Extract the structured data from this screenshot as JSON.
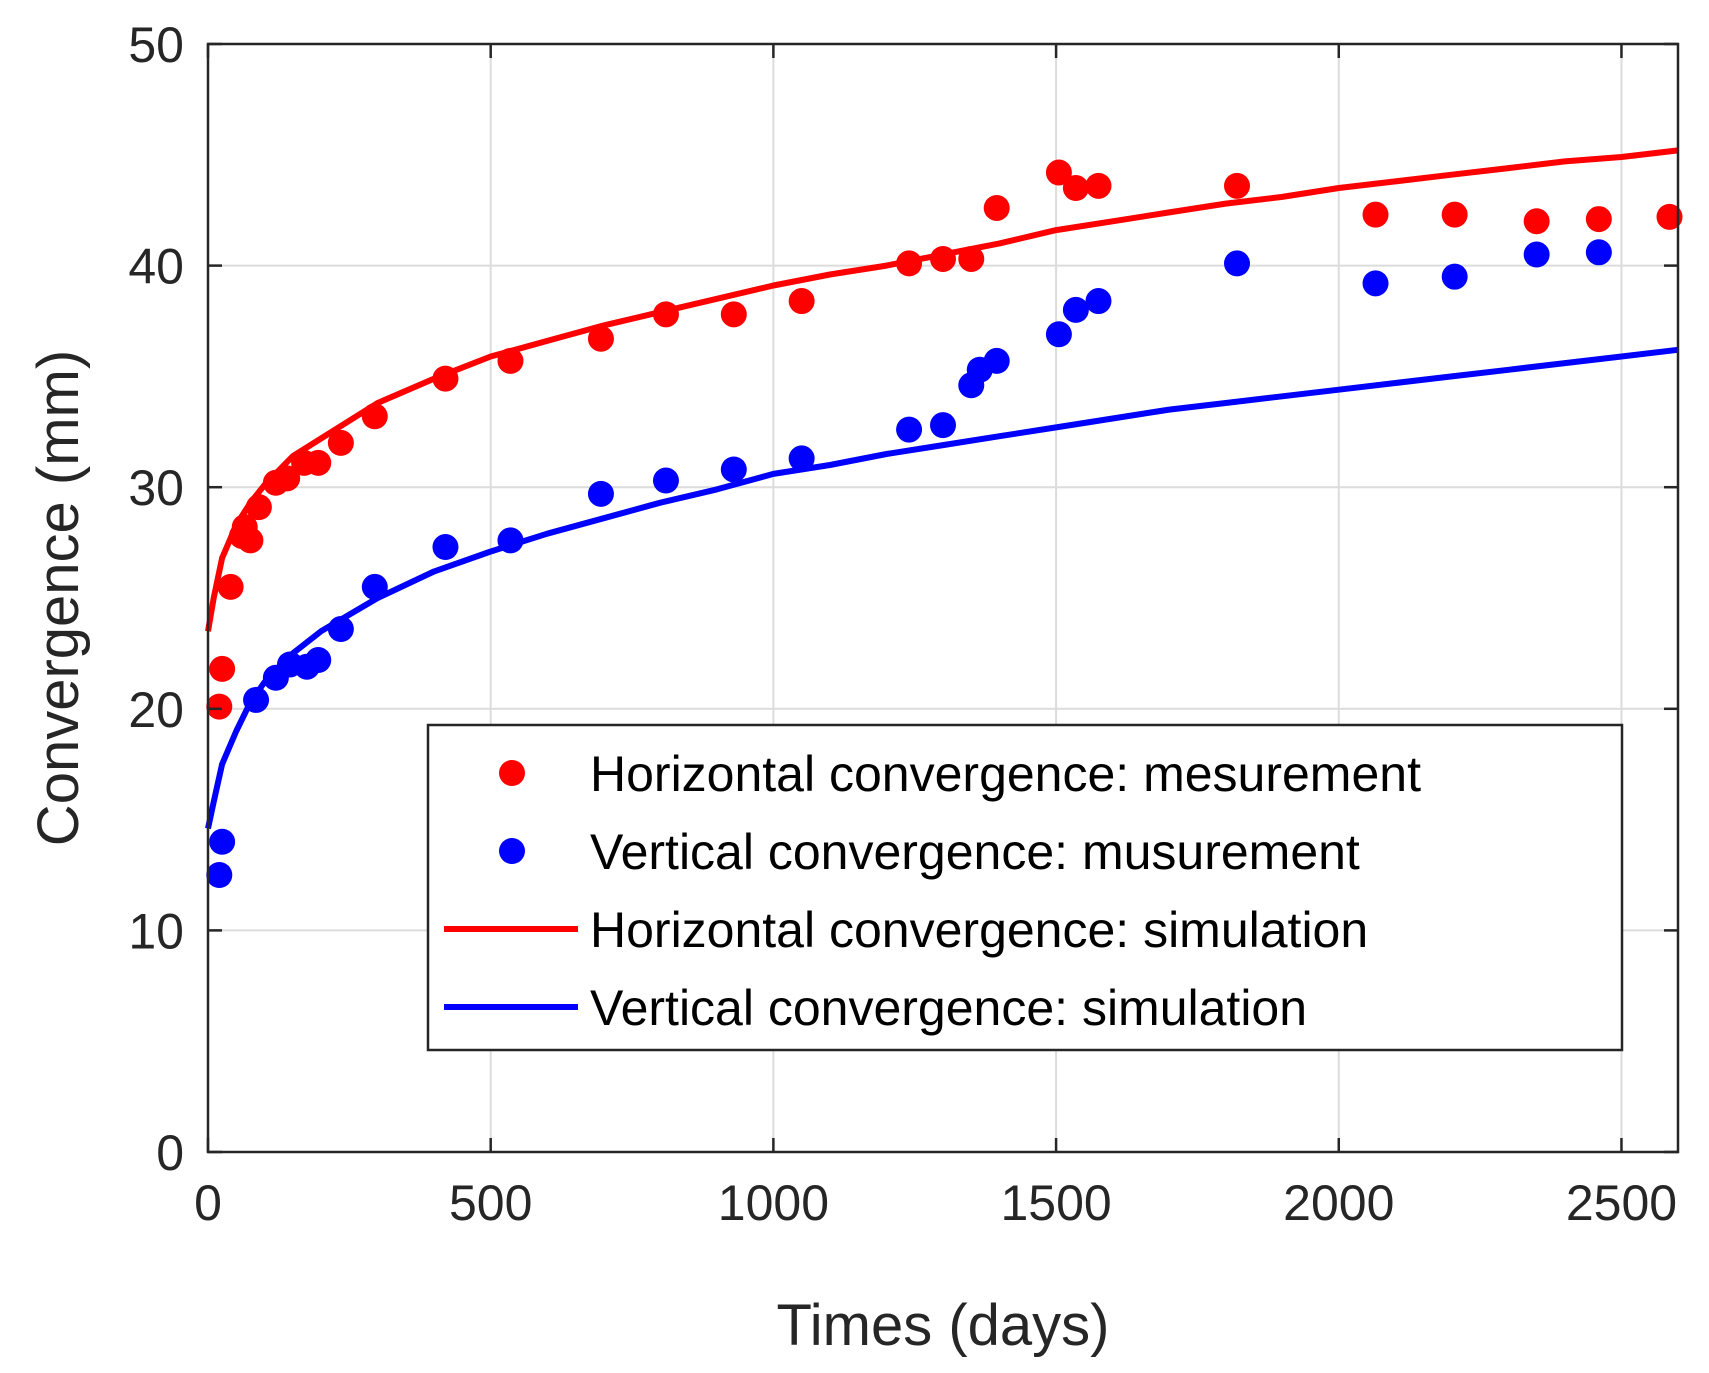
{
  "chart_data": {
    "type": "scatter",
    "title": "",
    "xlabel": "Times (days)",
    "ylabel": "Convergence (mm)",
    "xlim": [
      0,
      2600
    ],
    "ylim": [
      0,
      50
    ],
    "xticks": [
      0,
      500,
      1000,
      1500,
      2000,
      2500
    ],
    "yticks": [
      0,
      10,
      20,
      30,
      40,
      50
    ],
    "grid": true,
    "legend_position": "lower-right",
    "series": [
      {
        "name": "Horizontal convergence: mesurement",
        "kind": "markers",
        "color": "#ff0000",
        "points": [
          [
            20,
            20.1
          ],
          [
            25,
            21.8
          ],
          [
            40,
            25.5
          ],
          [
            60,
            27.8
          ],
          [
            65,
            28.2
          ],
          [
            75,
            27.6
          ],
          [
            90,
            29.1
          ],
          [
            120,
            30.2
          ],
          [
            140,
            30.4
          ],
          [
            170,
            31.1
          ],
          [
            195,
            31.1
          ],
          [
            235,
            32.0
          ],
          [
            295,
            33.2
          ],
          [
            420,
            34.9
          ],
          [
            535,
            35.7
          ],
          [
            695,
            36.7
          ],
          [
            810,
            37.8
          ],
          [
            930,
            37.8
          ],
          [
            1050,
            38.4
          ],
          [
            1240,
            40.1
          ],
          [
            1300,
            40.3
          ],
          [
            1350,
            40.3
          ],
          [
            1395,
            42.6
          ],
          [
            1505,
            44.2
          ],
          [
            1535,
            43.5
          ],
          [
            1575,
            43.6
          ],
          [
            1820,
            43.6
          ],
          [
            2065,
            42.3
          ],
          [
            2205,
            42.3
          ],
          [
            2350,
            42.0
          ],
          [
            2460,
            42.1
          ],
          [
            2585,
            42.2
          ]
        ]
      },
      {
        "name": "Vertical convergence: musurement",
        "kind": "markers",
        "color": "#0000ff",
        "points": [
          [
            20,
            12.5
          ],
          [
            25,
            14.0
          ],
          [
            85,
            20.4
          ],
          [
            120,
            21.4
          ],
          [
            145,
            22.0
          ],
          [
            175,
            21.9
          ],
          [
            195,
            22.2
          ],
          [
            235,
            23.6
          ],
          [
            295,
            25.5
          ],
          [
            420,
            27.3
          ],
          [
            535,
            27.6
          ],
          [
            695,
            29.7
          ],
          [
            810,
            30.3
          ],
          [
            930,
            30.8
          ],
          [
            1050,
            31.3
          ],
          [
            1240,
            32.6
          ],
          [
            1300,
            32.8
          ],
          [
            1350,
            34.6
          ],
          [
            1365,
            35.3
          ],
          [
            1395,
            35.7
          ],
          [
            1505,
            36.9
          ],
          [
            1535,
            38.0
          ],
          [
            1575,
            38.4
          ],
          [
            1820,
            40.1
          ],
          [
            2065,
            39.2
          ],
          [
            2205,
            39.5
          ],
          [
            2350,
            40.5
          ],
          [
            2460,
            40.6
          ]
        ]
      },
      {
        "name": "Horizontal convergence: simulation",
        "kind": "line",
        "color": "#ff0000",
        "points": [
          [
            0,
            23.5
          ],
          [
            10,
            25.0
          ],
          [
            25,
            26.8
          ],
          [
            50,
            28.3
          ],
          [
            75,
            29.3
          ],
          [
            100,
            30.1
          ],
          [
            150,
            31.4
          ],
          [
            200,
            32.2
          ],
          [
            300,
            33.8
          ],
          [
            400,
            34.9
          ],
          [
            500,
            35.9
          ],
          [
            600,
            36.6
          ],
          [
            700,
            37.3
          ],
          [
            800,
            37.9
          ],
          [
            900,
            38.5
          ],
          [
            1000,
            39.1
          ],
          [
            1100,
            39.6
          ],
          [
            1200,
            40.0
          ],
          [
            1300,
            40.5
          ],
          [
            1400,
            41.0
          ],
          [
            1500,
            41.6
          ],
          [
            1600,
            42.0
          ],
          [
            1700,
            42.4
          ],
          [
            1800,
            42.8
          ],
          [
            1900,
            43.1
          ],
          [
            2000,
            43.5
          ],
          [
            2100,
            43.8
          ],
          [
            2200,
            44.1
          ],
          [
            2300,
            44.4
          ],
          [
            2400,
            44.7
          ],
          [
            2500,
            44.9
          ],
          [
            2600,
            45.2
          ]
        ]
      },
      {
        "name": "Vertical convergence: simulation",
        "kind": "line",
        "color": "#0000ff",
        "points": [
          [
            0,
            14.6
          ],
          [
            10,
            15.8
          ],
          [
            25,
            17.5
          ],
          [
            50,
            19.0
          ],
          [
            75,
            20.3
          ],
          [
            100,
            21.2
          ],
          [
            150,
            22.5
          ],
          [
            200,
            23.5
          ],
          [
            300,
            25.0
          ],
          [
            400,
            26.2
          ],
          [
            500,
            27.1
          ],
          [
            600,
            27.9
          ],
          [
            700,
            28.6
          ],
          [
            800,
            29.3
          ],
          [
            900,
            29.9
          ],
          [
            1000,
            30.6
          ],
          [
            1100,
            31.0
          ],
          [
            1200,
            31.5
          ],
          [
            1300,
            31.9
          ],
          [
            1400,
            32.3
          ],
          [
            1500,
            32.7
          ],
          [
            1600,
            33.1
          ],
          [
            1700,
            33.5
          ],
          [
            1800,
            33.8
          ],
          [
            1900,
            34.1
          ],
          [
            2000,
            34.4
          ],
          [
            2100,
            34.7
          ],
          [
            2200,
            35.0
          ],
          [
            2300,
            35.3
          ],
          [
            2400,
            35.6
          ],
          [
            2500,
            35.9
          ],
          [
            2600,
            36.2
          ]
        ]
      }
    ]
  }
}
